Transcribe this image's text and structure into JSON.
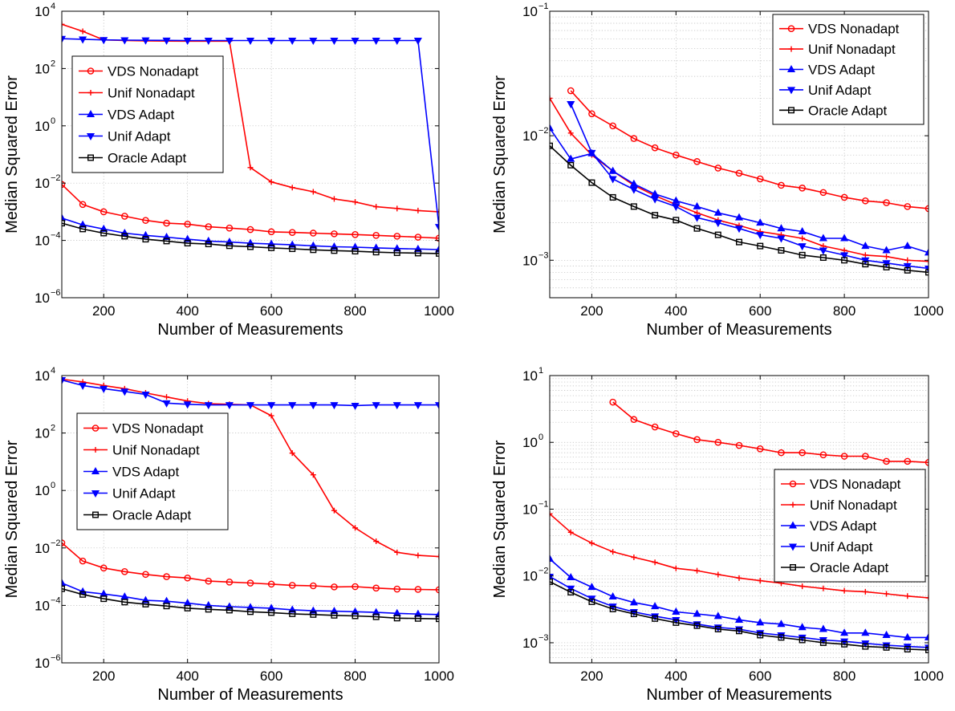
{
  "chart_data": [
    {
      "type": "line",
      "xlabel": "Number of Measurements",
      "ylabel": "Median Squared Error",
      "yscale": "log",
      "xlim": [
        100,
        1000
      ],
      "ylim": [
        1e-06,
        10000.0
      ],
      "xticks": [
        "200",
        "400",
        "600",
        "800",
        "1000"
      ],
      "yticks": [
        {
          "base": "10",
          "exp": "−6",
          "v": 1e-06
        },
        {
          "base": "10",
          "exp": "−4",
          "v": 0.0001
        },
        {
          "base": "10",
          "exp": "−2",
          "v": 0.01
        },
        {
          "base": "10",
          "exp": "0",
          "v": 1
        },
        {
          "base": "10",
          "exp": "2",
          "v": 100
        },
        {
          "base": "10",
          "exp": "4",
          "v": 10000
        }
      ],
      "grid": "major",
      "legend_position": "left",
      "x": [
        100,
        150,
        200,
        250,
        300,
        350,
        400,
        450,
        500,
        550,
        600,
        650,
        700,
        750,
        800,
        850,
        900,
        950,
        1000
      ],
      "series": [
        {
          "name": "VDS Nonadapt",
          "values": [
            0.009,
            0.0018,
            0.001,
            0.0007,
            0.0005,
            0.0004,
            0.00037,
            0.0003,
            0.00027,
            0.00024,
            0.0002,
            0.00019,
            0.00018,
            0.00017,
            0.00016,
            0.00015,
            0.00014,
            0.00013,
            0.00012
          ]
        },
        {
          "name": "Unif Nonadapt",
          "values": [
            3500,
            2000,
            1000,
            950,
            920,
            910,
            900,
            900,
            900,
            0.035,
            0.011,
            0.007,
            0.005,
            0.0028,
            0.0022,
            0.0015,
            0.0013,
            0.0011,
            0.001
          ]
        },
        {
          "name": "VDS Adapt",
          "values": [
            0.0006,
            0.00035,
            0.00025,
            0.00018,
            0.00015,
            0.00013,
            0.00011,
            9.5e-05,
            8.8e-05,
            8e-05,
            7.5e-05,
            7e-05,
            6.5e-05,
            6e-05,
            5.8e-05,
            5.5e-05,
            5.2e-05,
            5e-05,
            4.8e-05
          ]
        },
        {
          "name": "Unif Adapt",
          "values": [
            1100,
            1050,
            1000,
            980,
            970,
            960,
            950,
            950,
            950,
            950,
            950,
            950,
            950,
            950,
            950,
            950,
            950,
            950,
            0.0003
          ]
        },
        {
          "name": "Oracle Adapt",
          "values": [
            0.0004,
            0.00025,
            0.00018,
            0.00014,
            0.00011,
            9.5e-05,
            8e-05,
            7.5e-05,
            6.5e-05,
            6e-05,
            5.5e-05,
            5.1e-05,
            4.7e-05,
            4.4e-05,
            4.2e-05,
            3.9e-05,
            3.7e-05,
            3.6e-05,
            3.5e-05
          ]
        }
      ]
    },
    {
      "type": "line",
      "xlabel": "Number of Measurements",
      "ylabel": "Median Squared Error",
      "yscale": "log",
      "xlim": [
        100,
        1000
      ],
      "ylim": [
        0.0005,
        0.1
      ],
      "xticks": [
        "200",
        "400",
        "600",
        "800",
        "1000"
      ],
      "yticks": [
        {
          "base": "10",
          "exp": "−3",
          "v": 0.001
        },
        {
          "base": "10",
          "exp": "−2",
          "v": 0.01
        },
        {
          "base": "10",
          "exp": "−1",
          "v": 0.1
        }
      ],
      "grid": "major and minor",
      "legend_position": "top-right",
      "x": [
        100,
        150,
        200,
        250,
        300,
        350,
        400,
        450,
        500,
        550,
        600,
        650,
        700,
        750,
        800,
        850,
        900,
        950,
        1000
      ],
      "series": [
        {
          "name": "VDS Nonadapt",
          "values": [
            null,
            0.023,
            0.015,
            0.012,
            0.0095,
            0.008,
            0.007,
            0.0062,
            0.0055,
            0.005,
            0.0045,
            0.004,
            0.0038,
            0.0035,
            0.0032,
            0.003,
            0.0029,
            0.0027,
            0.0026
          ]
        },
        {
          "name": "Unif Nonadapt",
          "values": [
            0.02,
            0.0105,
            0.007,
            0.0052,
            0.004,
            0.0033,
            0.0028,
            0.0024,
            0.0021,
            0.0019,
            0.0017,
            0.0016,
            0.0015,
            0.0013,
            0.0012,
            0.0011,
            0.00107,
            0.001,
            0.00098
          ]
        },
        {
          "name": "VDS Adapt",
          "values": [
            0.0115,
            0.0065,
            0.0072,
            0.0052,
            0.0041,
            0.0034,
            0.003,
            0.0027,
            0.0024,
            0.0022,
            0.002,
            0.0018,
            0.0017,
            0.0015,
            0.0015,
            0.0013,
            0.0012,
            0.0013,
            0.00115
          ]
        },
        {
          "name": "Unif Adapt",
          "values": [
            null,
            0.018,
            0.0073,
            0.0045,
            0.0037,
            0.0031,
            0.0027,
            0.0022,
            0.002,
            0.0018,
            0.0016,
            0.0015,
            0.0013,
            0.0012,
            0.0011,
            0.001,
            0.00095,
            0.0009,
            0.00086
          ]
        },
        {
          "name": "Oracle Adapt",
          "values": [
            0.0083,
            0.0058,
            0.0042,
            0.0032,
            0.0027,
            0.0023,
            0.0021,
            0.0018,
            0.0016,
            0.0014,
            0.0013,
            0.0012,
            0.0011,
            0.00105,
            0.001,
            0.00093,
            0.00088,
            0.00083,
            0.0008
          ]
        }
      ]
    },
    {
      "type": "line",
      "xlabel": "Number of Measurements",
      "ylabel": "Median Squared Error",
      "yscale": "log",
      "xlim": [
        100,
        1000
      ],
      "ylim": [
        1e-06,
        10000.0
      ],
      "xticks": [
        "200",
        "400",
        "600",
        "800",
        "1000"
      ],
      "yticks": [
        {
          "base": "10",
          "exp": "−6",
          "v": 1e-06
        },
        {
          "base": "10",
          "exp": "−4",
          "v": 0.0001
        },
        {
          "base": "10",
          "exp": "−2",
          "v": 0.01
        },
        {
          "base": "10",
          "exp": "0",
          "v": 1
        },
        {
          "base": "10",
          "exp": "2",
          "v": 100
        },
        {
          "base": "10",
          "exp": "4",
          "v": 10000
        }
      ],
      "grid": "major",
      "legend_position": "left",
      "x": [
        100,
        150,
        200,
        250,
        300,
        350,
        400,
        450,
        500,
        550,
        600,
        650,
        700,
        750,
        800,
        850,
        900,
        950,
        1000
      ],
      "series": [
        {
          "name": "VDS Nonadapt",
          "values": [
            0.015,
            0.0035,
            0.002,
            0.0015,
            0.0012,
            0.001,
            0.0009,
            0.0007,
            0.00065,
            0.0006,
            0.00055,
            0.0005,
            0.00048,
            0.00044,
            0.00045,
            0.0004,
            0.00037,
            0.00036,
            0.00035
          ]
        },
        {
          "name": "Unif Nonadapt",
          "values": [
            7500,
            6000,
            4500,
            3500,
            2500,
            1800,
            1300,
            1050,
            1000,
            950,
            400,
            20,
            3.5,
            0.2,
            0.05,
            0.017,
            0.007,
            0.0055,
            0.005
          ]
        },
        {
          "name": "VDS Adapt",
          "values": [
            0.0006,
            0.0003,
            0.00025,
            0.0002,
            0.00015,
            0.00014,
            0.00012,
            0.0001,
            9e-05,
            8.5e-05,
            8e-05,
            7e-05,
            6.5e-05,
            6.3e-05,
            6e-05,
            5.7e-05,
            5.3e-05,
            5e-05,
            4.8e-05
          ]
        },
        {
          "name": "Unif Adapt",
          "values": [
            7000,
            4500,
            3500,
            2800,
            2200,
            1100,
            1000,
            950,
            950,
            950,
            950,
            950,
            950,
            950,
            900,
            950,
            950,
            950,
            950
          ]
        },
        {
          "name": "Oracle Adapt",
          "values": [
            0.00038,
            0.00024,
            0.00017,
            0.00013,
            0.00011,
            9.5e-05,
            8e-05,
            7.3e-05,
            6.8e-05,
            6e-05,
            5.6e-05,
            5.1e-05,
            4.8e-05,
            4.5e-05,
            4.3e-05,
            4e-05,
            3.6e-05,
            3.5e-05,
            3.4e-05
          ]
        }
      ]
    },
    {
      "type": "line",
      "xlabel": "Number of Measurements",
      "ylabel": "Median Squared Error",
      "yscale": "log",
      "xlim": [
        100,
        1000
      ],
      "ylim": [
        0.0005,
        10
      ],
      "xticks": [
        "200",
        "400",
        "600",
        "800",
        "1000"
      ],
      "yticks": [
        {
          "base": "10",
          "exp": "−3",
          "v": 0.001
        },
        {
          "base": "10",
          "exp": "−2",
          "v": 0.01
        },
        {
          "base": "10",
          "exp": "−1",
          "v": 0.1
        },
        {
          "base": "10",
          "exp": "0",
          "v": 1
        },
        {
          "base": "10",
          "exp": "1",
          "v": 10
        }
      ],
      "grid": "major and minor",
      "legend_position": "right",
      "x": [
        100,
        150,
        200,
        250,
        300,
        350,
        400,
        450,
        500,
        550,
        600,
        650,
        700,
        750,
        800,
        850,
        900,
        950,
        1000
      ],
      "series": [
        {
          "name": "VDS Nonadapt",
          "values": [
            null,
            null,
            null,
            4.0,
            2.2,
            1.7,
            1.35,
            1.1,
            1.0,
            0.9,
            0.8,
            0.7,
            0.7,
            0.65,
            0.62,
            0.62,
            0.52,
            0.52,
            0.5
          ]
        },
        {
          "name": "Unif Nonadapt",
          "values": [
            0.085,
            0.045,
            0.031,
            0.023,
            0.019,
            0.016,
            0.013,
            0.012,
            0.0105,
            0.0093,
            0.0085,
            0.0078,
            0.007,
            0.0065,
            0.006,
            0.0058,
            0.0054,
            0.005,
            0.0047
          ]
        },
        {
          "name": "VDS Adapt",
          "values": [
            0.018,
            0.0095,
            0.0068,
            0.0049,
            0.004,
            0.0035,
            0.0029,
            0.0027,
            0.0025,
            0.0022,
            0.002,
            0.0019,
            0.0017,
            0.0016,
            0.0014,
            0.0014,
            0.0013,
            0.0012,
            0.0012
          ]
        },
        {
          "name": "Unif Adapt",
          "values": [
            0.0098,
            0.0065,
            0.0046,
            0.0035,
            0.0029,
            0.0025,
            0.0022,
            0.0019,
            0.0017,
            0.0016,
            0.0014,
            0.0013,
            0.0012,
            0.0011,
            0.00105,
            0.00098,
            0.00092,
            0.00088,
            0.00085
          ]
        },
        {
          "name": "Oracle Adapt",
          "values": [
            0.0082,
            0.0057,
            0.0041,
            0.0032,
            0.0027,
            0.0023,
            0.002,
            0.0018,
            0.0016,
            0.0015,
            0.0013,
            0.0012,
            0.0011,
            0.001,
            0.00095,
            0.00088,
            0.00085,
            0.0008,
            0.00078
          ]
        }
      ]
    }
  ],
  "styles": {
    "VDS Nonadapt": {
      "color": "#ff0000",
      "marker": "circle"
    },
    "Unif Nonadapt": {
      "color": "#ff0000",
      "marker": "plus"
    },
    "VDS Adapt": {
      "color": "#0000ff",
      "marker": "triangle-up"
    },
    "Unif Adapt": {
      "color": "#0000ff",
      "marker": "triangle-down"
    },
    "Oracle Adapt": {
      "color": "#000000",
      "marker": "square"
    }
  }
}
